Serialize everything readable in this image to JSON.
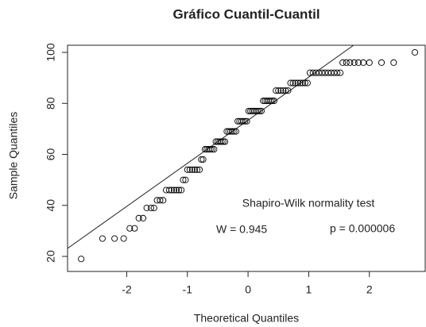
{
  "chart_data": {
    "type": "scatter",
    "title": "Gráfico Cuantil-Cuantil",
    "x_label": "Theoretical Quantiles",
    "y_label": "Sample Quantiles",
    "xlim": [
      -2.975,
      2.92
    ],
    "ylim": [
      14.1,
      102.8
    ],
    "xticks": [
      -2,
      -1,
      0,
      1,
      2
    ],
    "yticks": [
      20,
      40,
      60,
      80,
      100
    ],
    "color": "#000000",
    "reference_line": {
      "intercept": 73.4,
      "slope": 16.9
    },
    "annotations": [
      "Shapiro-Wilk normality test",
      "W =  0.945",
      "p = 0.000006"
    ],
    "x": [
      -2.75,
      -2.4,
      -2.2,
      -2.05,
      -1.95,
      -1.87,
      -1.8,
      -1.73,
      -1.67,
      -1.6,
      -1.55,
      -1.5,
      -1.45,
      -1.4,
      -1.35,
      -1.3,
      -1.26,
      -1.22,
      -1.18,
      -1.14,
      -1.1,
      -1.07,
      -1.03,
      -1.0,
      -0.96,
      -0.92,
      -0.88,
      -0.84,
      -0.8,
      -0.77,
      -0.74,
      -0.71,
      -0.68,
      -0.65,
      -0.62,
      -0.59,
      -0.56,
      -0.53,
      -0.5,
      -0.47,
      -0.44,
      -0.41,
      -0.38,
      -0.35,
      -0.32,
      -0.29,
      -0.26,
      -0.23,
      -0.2,
      -0.17,
      -0.14,
      -0.11,
      -0.08,
      -0.05,
      -0.02,
      0.01,
      0.04,
      0.07,
      0.1,
      0.13,
      0.16,
      0.19,
      0.22,
      0.25,
      0.28,
      0.31,
      0.34,
      0.37,
      0.4,
      0.43,
      0.46,
      0.5,
      0.54,
      0.58,
      0.62,
      0.66,
      0.7,
      0.74,
      0.78,
      0.82,
      0.86,
      0.9,
      0.94,
      0.98,
      1.02,
      1.07,
      1.12,
      1.17,
      1.22,
      1.27,
      1.32,
      1.37,
      1.42,
      1.47,
      1.52,
      1.56,
      1.62,
      1.68,
      1.75,
      1.82,
      1.9,
      2.0,
      2.2,
      2.4,
      2.75
    ],
    "y": [
      19,
      27,
      27,
      27,
      31,
      31,
      35,
      35,
      39,
      39,
      39,
      42,
      42,
      42,
      46,
      46,
      46,
      46,
      46,
      46,
      46,
      50,
      50,
      54,
      54,
      54,
      54,
      54,
      54,
      58,
      58,
      62,
      62,
      62,
      62,
      62,
      62,
      65,
      65,
      65,
      65,
      65,
      65,
      69,
      69,
      69,
      69,
      69,
      69,
      73,
      73,
      73,
      73,
      73,
      73,
      77,
      77,
      77,
      77,
      77,
      77,
      77,
      77,
      81,
      81,
      81,
      81,
      81,
      81,
      81,
      85,
      85,
      85,
      85,
      85,
      85,
      88,
      88,
      88,
      88,
      88,
      88,
      88,
      88,
      92,
      92,
      92,
      92,
      92,
      92,
      92,
      92,
      92,
      92,
      92,
      96,
      96,
      96,
      96,
      96,
      96,
      96,
      96,
      96,
      100
    ]
  }
}
